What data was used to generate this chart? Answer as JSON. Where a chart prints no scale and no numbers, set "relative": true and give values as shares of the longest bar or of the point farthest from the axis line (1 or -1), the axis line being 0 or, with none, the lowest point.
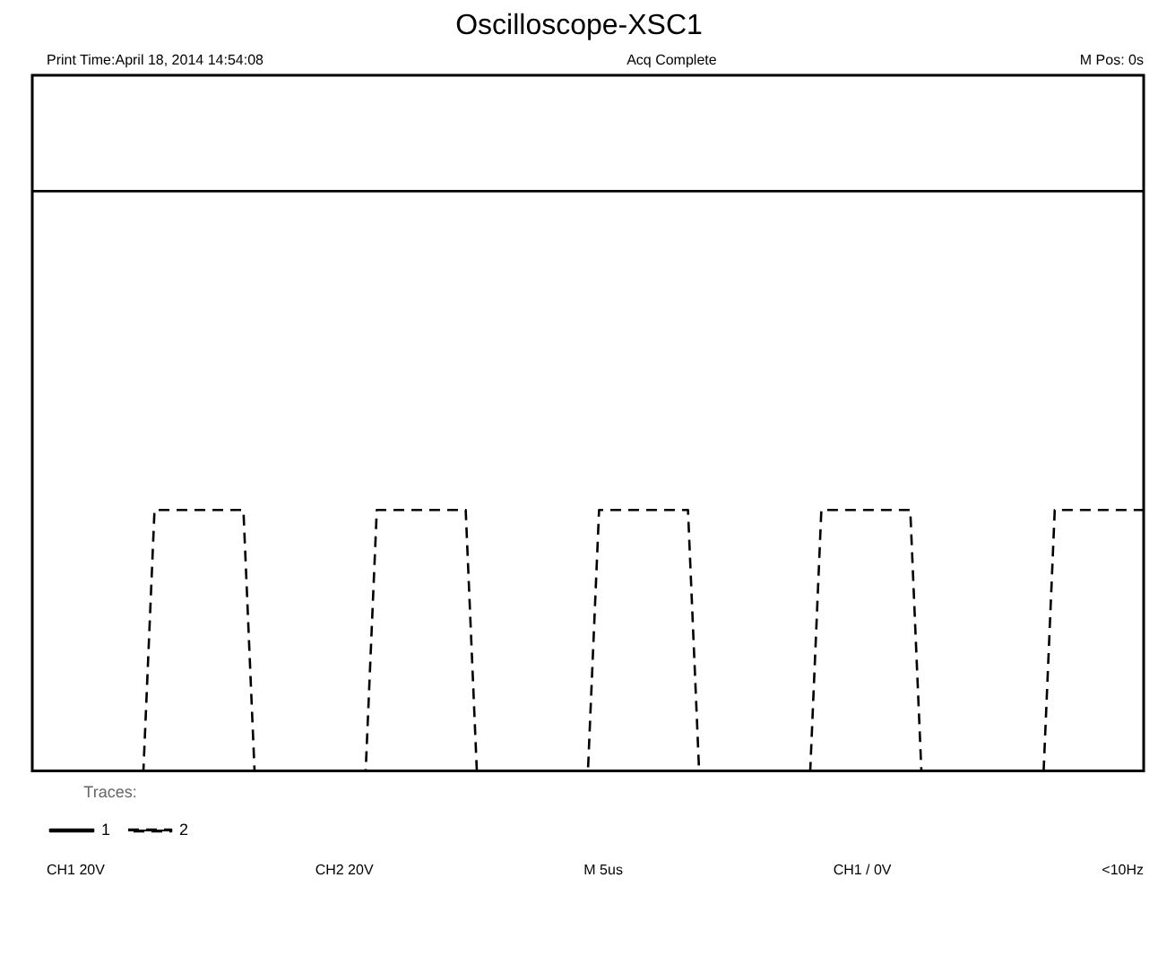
{
  "chart_data": {
    "type": "line",
    "title": "Oscilloscope-XSC1",
    "relative": true,
    "annotations": [
      "Print Time:April 18, 2014 14:54:08",
      "Acq Complete",
      "M Pos: 0s",
      "CH1  20V",
      "CH2  20V",
      "M 5us",
      "CH1 / 0V",
      "<10Hz"
    ],
    "categories": [
      null,
      null,
      null,
      null,
      null,
      null,
      null,
      null,
      null,
      null,
      null,
      null,
      null,
      null,
      null,
      null,
      null,
      null,
      null,
      null,
      null,
      null,
      null,
      null,
      null,
      null,
      null,
      null,
      null,
      null,
      null,
      null,
      null,
      null,
      null,
      null,
      null,
      null,
      null,
      null,
      null,
      null,
      null,
      null,
      null,
      null,
      null,
      null,
      null,
      null,
      null,
      null,
      null,
      null,
      null,
      null,
      null,
      null,
      null,
      null,
      null,
      null,
      null,
      null,
      null,
      null,
      null,
      null,
      null,
      null,
      null,
      null,
      null,
      null,
      null,
      null,
      null,
      null,
      null,
      null,
      null,
      null,
      null,
      null,
      null,
      null,
      null,
      null,
      null,
      null,
      null,
      null,
      null,
      null,
      null,
      null,
      null,
      null,
      null,
      null,
      null
    ],
    "legend": "bottom left",
    "legend_title": "Traces:",
    "marker": "none",
    "series": [
      {
        "name": "1",
        "color": "#000000",
        "line_style": "solid",
        "values": [
          1,
          1,
          1,
          1,
          1,
          1,
          1,
          1,
          1,
          1,
          1,
          1,
          1,
          1,
          1,
          1,
          1,
          1,
          1,
          1,
          1,
          1,
          1,
          1,
          1,
          1,
          1,
          1,
          1,
          1,
          1,
          1,
          1,
          1,
          1,
          1,
          1,
          1,
          1,
          1,
          1,
          1,
          1,
          1,
          1,
          1,
          1,
          1,
          1,
          1,
          1,
          1,
          1,
          1,
          1,
          1,
          1,
          1,
          1,
          1,
          1,
          1,
          1,
          1,
          1,
          1,
          1,
          1,
          1,
          1,
          1,
          1,
          1,
          1,
          1,
          1,
          1,
          1,
          1,
          1,
          1,
          1,
          1,
          1,
          1,
          1,
          1,
          1,
          1,
          1,
          1,
          1,
          1,
          1,
          1,
          1,
          1,
          1,
          1,
          1,
          1
        ]
      },
      {
        "name": "2",
        "color": "#000000",
        "line_style": "dashed",
        "values": [
          0,
          0,
          0,
          0,
          0,
          0,
          0,
          0,
          0,
          0,
          0,
          0.45,
          0.45,
          0.45,
          0.45,
          0.45,
          0.45,
          0.45,
          0.45,
          0.45,
          0,
          0,
          0,
          0,
          0,
          0,
          0,
          0,
          0,
          0,
          0,
          0.45,
          0.45,
          0.45,
          0.45,
          0.45,
          0.45,
          0.45,
          0.45,
          0.45,
          0,
          0,
          0,
          0,
          0,
          0,
          0,
          0,
          0,
          0,
          0,
          0.45,
          0.45,
          0.45,
          0.45,
          0.45,
          0.45,
          0.45,
          0.45,
          0.45,
          0,
          0,
          0,
          0,
          0,
          0,
          0,
          0,
          0,
          0,
          0,
          0.45,
          0.45,
          0.45,
          0.45,
          0.45,
          0.45,
          0.45,
          0.45,
          0.45,
          0,
          0,
          0,
          0,
          0,
          0,
          0,
          0,
          0,
          0,
          0,
          0,
          0.45,
          0.45,
          0.45,
          0.45,
          0.45,
          0.45,
          0.45,
          0.45,
          0.45
        ]
      }
    ]
  }
}
